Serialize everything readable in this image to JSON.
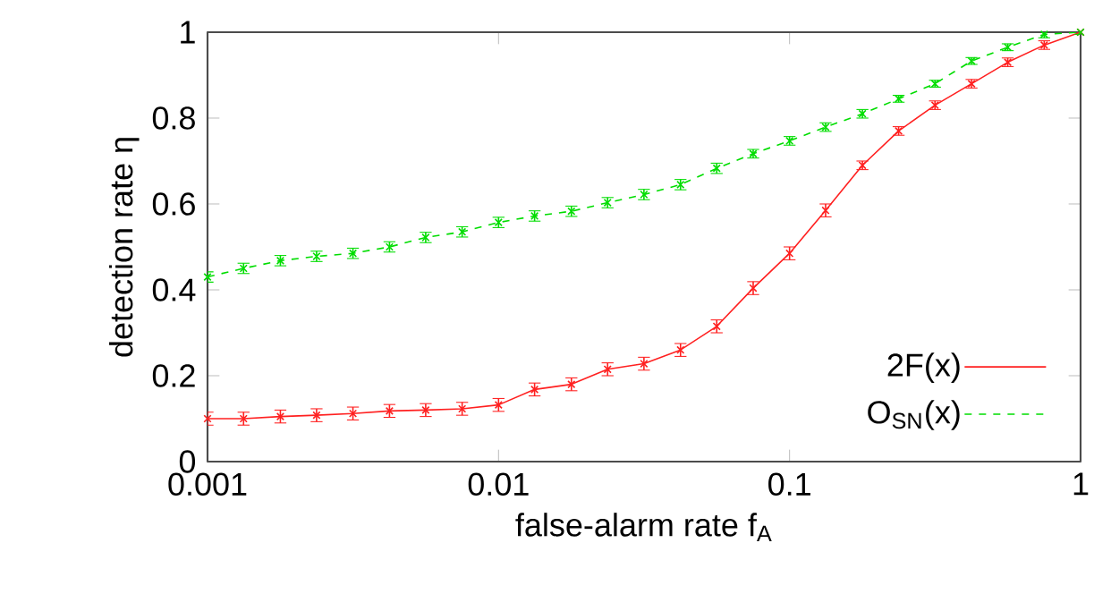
{
  "chart_data": {
    "type": "line",
    "xlabel": "false-alarm rate f$_{A}$",
    "ylabel": "detection rate η",
    "x": [
      0.001,
      0.00133,
      0.00178,
      0.00237,
      0.00316,
      0.00422,
      0.00562,
      0.0075,
      0.01,
      0.0133,
      0.0178,
      0.0237,
      0.0316,
      0.0422,
      0.0562,
      0.075,
      0.1,
      0.133,
      0.178,
      0.237,
      0.316,
      0.422,
      0.562,
      0.75,
      1
    ],
    "series": [
      {
        "name": "2F(x)",
        "color": "#ff2020",
        "marker": "cross",
        "line_style": "solid",
        "values": [
          0.1,
          0.1,
          0.105,
          0.108,
          0.112,
          0.118,
          0.12,
          0.123,
          0.132,
          0.168,
          0.18,
          0.215,
          0.228,
          0.26,
          0.315,
          0.404,
          0.485,
          0.585,
          0.69,
          0.77,
          0.83,
          0.88,
          0.93,
          0.97,
          1.0
        ],
        "errors": [
          0.015,
          0.015,
          0.015,
          0.015,
          0.015,
          0.015,
          0.015,
          0.015,
          0.015,
          0.015,
          0.015,
          0.015,
          0.015,
          0.015,
          0.015,
          0.015,
          0.015,
          0.015,
          0.01,
          0.01,
          0.01,
          0.01,
          0.01,
          0.01,
          0.005
        ]
      },
      {
        "name": "O$_{SN}$(x)",
        "color": "#00dd00",
        "marker": "cross",
        "line_style": "dashed",
        "values": [
          0.43,
          0.45,
          0.468,
          0.478,
          0.485,
          0.5,
          0.522,
          0.535,
          0.557,
          0.572,
          0.583,
          0.603,
          0.622,
          0.645,
          0.683,
          0.717,
          0.747,
          0.779,
          0.81,
          0.845,
          0.88,
          0.933,
          0.965,
          0.995,
          1.0
        ],
        "errors": [
          0.012,
          0.012,
          0.012,
          0.012,
          0.012,
          0.012,
          0.012,
          0.012,
          0.012,
          0.012,
          0.012,
          0.012,
          0.012,
          0.012,
          0.012,
          0.01,
          0.01,
          0.01,
          0.01,
          0.008,
          0.008,
          0.008,
          0.008,
          0.008,
          0.005
        ]
      }
    ],
    "xlim": [
      0.001,
      1
    ],
    "ylim": [
      0,
      1
    ],
    "xticks": [
      0.001,
      0.01,
      0.1,
      1
    ],
    "yticks": [
      0,
      0.2,
      0.4,
      0.6,
      0.8,
      1
    ],
    "log": "x",
    "grid": false,
    "legend": "bottom right"
  }
}
